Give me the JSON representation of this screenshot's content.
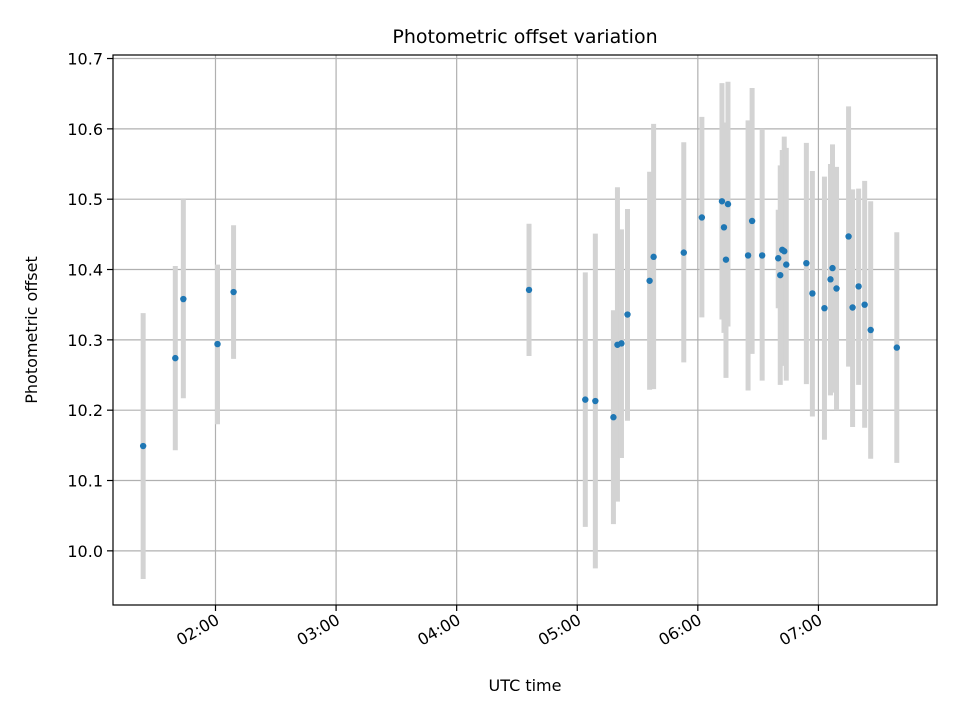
{
  "chart_data": {
    "type": "scatter",
    "title": "Photometric offset variation",
    "xlabel": "UTC time",
    "ylabel": "Photometric offset",
    "x_axis": "time",
    "xlim": [
      "01:09",
      "07:59"
    ],
    "ylim": [
      9.923,
      10.705
    ],
    "x_ticks": [
      "02:00",
      "03:00",
      "04:00",
      "05:00",
      "06:00",
      "07:00"
    ],
    "y_ticks": [
      10.0,
      10.1,
      10.2,
      10.3,
      10.4,
      10.5,
      10.6,
      10.7
    ],
    "y_tick_labels": [
      "10.0",
      "10.1",
      "10.2",
      "10.3",
      "10.4",
      "10.5",
      "10.6",
      "10.7"
    ],
    "grid": true,
    "colors": {
      "marker": "#1f77b4",
      "errorbar": "#d3d3d3",
      "grid": "#b0b0b0"
    },
    "points": [
      {
        "t": "01:24",
        "y": 10.149,
        "lo": 9.96,
        "hi": 10.338
      },
      {
        "t": "01:40",
        "y": 10.274,
        "lo": 10.143,
        "hi": 10.405
      },
      {
        "t": "01:44",
        "y": 10.358,
        "lo": 10.217,
        "hi": 10.5
      },
      {
        "t": "02:01",
        "y": 10.294,
        "lo": 10.18,
        "hi": 10.407
      },
      {
        "t": "02:09",
        "y": 10.368,
        "lo": 10.273,
        "hi": 10.463
      },
      {
        "t": "04:36",
        "y": 10.371,
        "lo": 10.277,
        "hi": 10.465
      },
      {
        "t": "05:04",
        "y": 10.215,
        "lo": 10.034,
        "hi": 10.396
      },
      {
        "t": "05:09",
        "y": 10.213,
        "lo": 9.975,
        "hi": 10.451
      },
      {
        "t": "05:18",
        "y": 10.19,
        "lo": 10.038,
        "hi": 10.342
      },
      {
        "t": "05:20",
        "y": 10.293,
        "lo": 10.07,
        "hi": 10.517
      },
      {
        "t": "05:22",
        "y": 10.295,
        "lo": 10.132,
        "hi": 10.457
      },
      {
        "t": "05:25",
        "y": 10.336,
        "lo": 10.185,
        "hi": 10.486
      },
      {
        "t": "05:36",
        "y": 10.384,
        "lo": 10.229,
        "hi": 10.539
      },
      {
        "t": "05:38",
        "y": 10.418,
        "lo": 10.23,
        "hi": 10.607
      },
      {
        "t": "05:53",
        "y": 10.424,
        "lo": 10.268,
        "hi": 10.581
      },
      {
        "t": "06:02",
        "y": 10.474,
        "lo": 10.332,
        "hi": 10.617
      },
      {
        "t": "06:12",
        "y": 10.497,
        "lo": 10.329,
        "hi": 10.665
      },
      {
        "t": "06:13",
        "y": 10.46,
        "lo": 10.31,
        "hi": 10.609
      },
      {
        "t": "06:14",
        "y": 10.414,
        "lo": 10.246,
        "hi": 10.583
      },
      {
        "t": "06:15",
        "y": 10.493,
        "lo": 10.319,
        "hi": 10.667
      },
      {
        "t": "06:25",
        "y": 10.42,
        "lo": 10.228,
        "hi": 10.612
      },
      {
        "t": "06:27",
        "y": 10.469,
        "lo": 10.28,
        "hi": 10.658
      },
      {
        "t": "06:32",
        "y": 10.42,
        "lo": 10.242,
        "hi": 10.6
      },
      {
        "t": "06:40",
        "y": 10.416,
        "lo": 10.345,
        "hi": 10.485
      },
      {
        "t": "06:41",
        "y": 10.392,
        "lo": 10.236,
        "hi": 10.548
      },
      {
        "t": "06:42",
        "y": 10.428,
        "lo": 10.285,
        "hi": 10.57
      },
      {
        "t": "06:43",
        "y": 10.426,
        "lo": 10.263,
        "hi": 10.589
      },
      {
        "t": "06:44",
        "y": 10.407,
        "lo": 10.242,
        "hi": 10.573
      },
      {
        "t": "06:54",
        "y": 10.409,
        "lo": 10.237,
        "hi": 10.58
      },
      {
        "t": "06:57",
        "y": 10.366,
        "lo": 10.191,
        "hi": 10.54
      },
      {
        "t": "07:03",
        "y": 10.345,
        "lo": 10.158,
        "hi": 10.532
      },
      {
        "t": "07:06",
        "y": 10.386,
        "lo": 10.221,
        "hi": 10.55
      },
      {
        "t": "07:07",
        "y": 10.402,
        "lo": 10.225,
        "hi": 10.578
      },
      {
        "t": "07:09",
        "y": 10.373,
        "lo": 10.2,
        "hi": 10.546
      },
      {
        "t": "07:15",
        "y": 10.447,
        "lo": 10.262,
        "hi": 10.632
      },
      {
        "t": "07:17",
        "y": 10.346,
        "lo": 10.176,
        "hi": 10.514
      },
      {
        "t": "07:20",
        "y": 10.376,
        "lo": 10.236,
        "hi": 10.515
      },
      {
        "t": "07:23",
        "y": 10.35,
        "lo": 10.175,
        "hi": 10.526
      },
      {
        "t": "07:26",
        "y": 10.314,
        "lo": 10.131,
        "hi": 10.497
      },
      {
        "t": "07:39",
        "y": 10.289,
        "lo": 10.125,
        "hi": 10.453
      }
    ]
  }
}
